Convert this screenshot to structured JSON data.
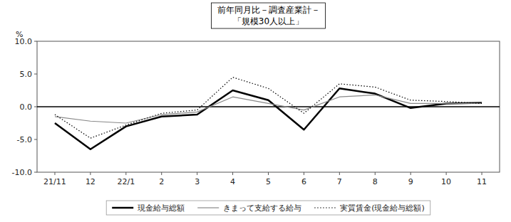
{
  "chart_data": {
    "type": "line",
    "title": "前年同月比－調査産業計－",
    "subtitle": "「規模30人以上」",
    "y_label": "%",
    "categories": [
      "21/11",
      "12",
      "22/1",
      "2",
      "3",
      "4",
      "5",
      "6",
      "7",
      "8",
      "9",
      "10",
      "11"
    ],
    "series": [
      {
        "name": "現金給与総額",
        "color": "#000000",
        "line_style": "solid",
        "values": [
          -2.5,
          -6.5,
          -3.0,
          -1.5,
          -1.2,
          2.5,
          1.0,
          -3.5,
          2.8,
          2.0,
          -0.2,
          0.5,
          0.6
        ]
      },
      {
        "name": "きまって支給する給与",
        "color": "#888888",
        "line_style": "solid",
        "values": [
          -1.5,
          -2.2,
          -2.5,
          -1.2,
          -0.8,
          1.5,
          0.5,
          -0.5,
          1.5,
          1.8,
          0.5,
          0.5,
          0.5
        ]
      },
      {
        "name": "実質賃金(現金給与総額)",
        "color": "#000000",
        "line_style": "dotted",
        "values": [
          -1.2,
          -4.8,
          -2.8,
          -1.0,
          -0.5,
          4.5,
          2.8,
          -1.0,
          3.5,
          3.0,
          1.0,
          0.8,
          0.5
        ]
      }
    ],
    "ylim": [
      -10.0,
      10.0
    ],
    "yticks": [
      {
        "value": -10.0,
        "label": "-10.0"
      },
      {
        "value": -5.0,
        "label": "-5.0"
      },
      {
        "value": 0.0,
        "label": "0.0"
      },
      {
        "value": 5.0,
        "label": "5.0"
      },
      {
        "value": 10.0,
        "label": "10.0"
      }
    ],
    "grid": false,
    "legend": "bottom"
  }
}
